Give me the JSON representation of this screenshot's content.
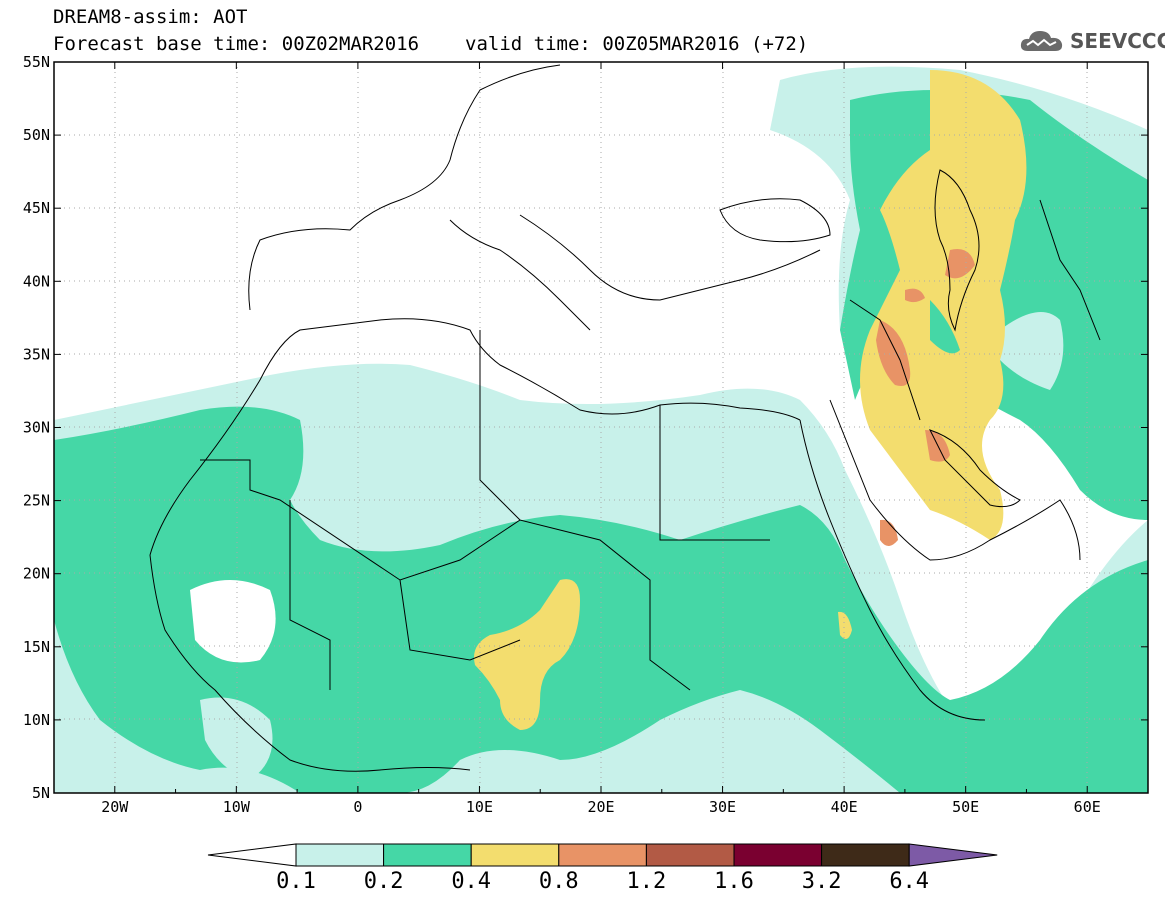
{
  "header": {
    "line1": "DREAM8-assim: AOT",
    "forecast_base": "Forecast base time: 00Z02MAR2016",
    "valid_time": "valid time: 00Z05MAR2016 (+72)"
  },
  "logo": {
    "text": "SEEVCCC",
    "icon": "cloud-icon"
  },
  "map": {
    "lon_range": [
      -25,
      65
    ],
    "lat_range": [
      5,
      55
    ],
    "lat_ticks": [
      "55N",
      "50N",
      "45N",
      "40N",
      "35N",
      "30N",
      "25N",
      "20N",
      "15N",
      "10N",
      "5N"
    ],
    "lon_ticks": [
      "20W",
      "10W",
      "0",
      "10E",
      "20E",
      "30E",
      "40E",
      "50E",
      "60E"
    ],
    "grid": "dotted",
    "ocean_color": "#ffffff",
    "land_color": "#ffffff"
  },
  "colorbar": {
    "labels": [
      "0.1",
      "0.2",
      "0.4",
      "0.8",
      "1.2",
      "1.6",
      "3.2",
      "6.4"
    ],
    "colors": [
      "#ffffff",
      "#c8f1ea",
      "#45d7a6",
      "#f3dd6e",
      "#e89366",
      "#b25a45",
      "#7a0030",
      "#3e2a18",
      "#7d5aa6"
    ]
  }
}
